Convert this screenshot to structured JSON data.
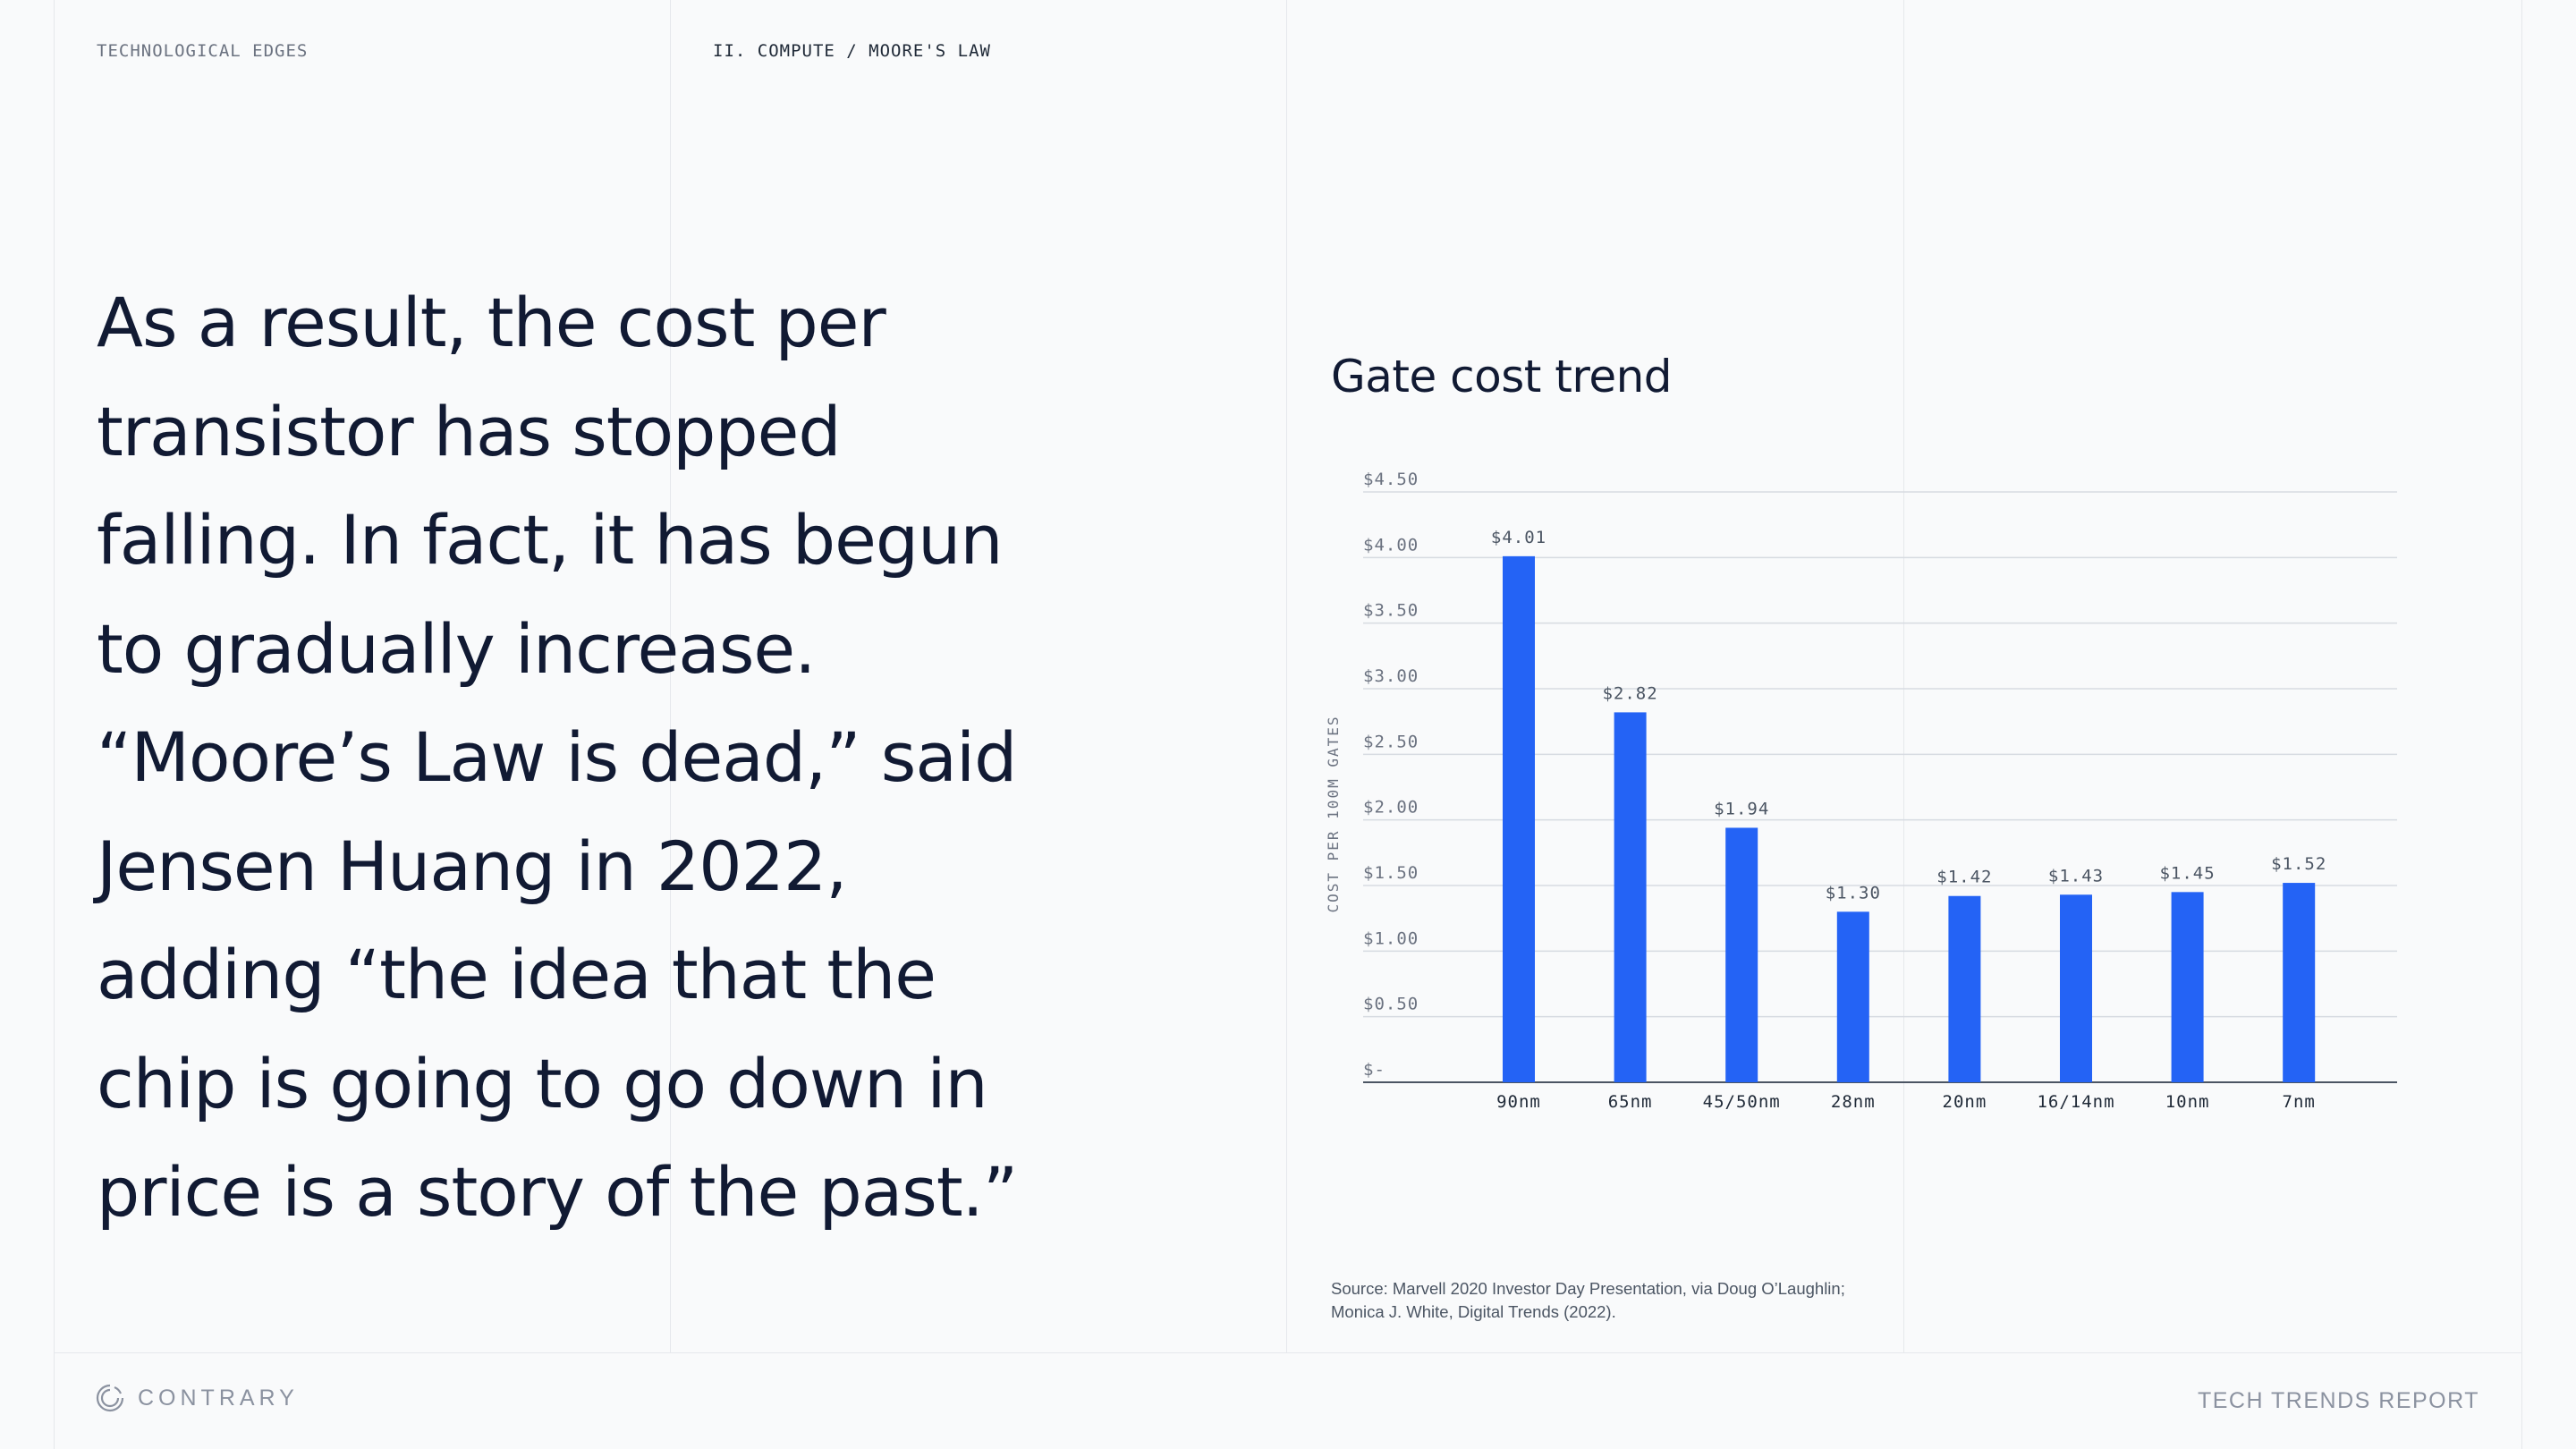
{
  "header": {
    "section": "TECHNOLOGICAL EDGES",
    "breadcrumb": "II. COMPUTE / MOORE'S LAW"
  },
  "quote_lines": [
    "As a result, the cost per",
    "transistor has stopped",
    "falling. In fact, it has begun",
    "to gradually increase.",
    "“Moore’s Law is dead,” said",
    "Jensen Huang in 2022,",
    "adding “the idea that the",
    "chip is going to go down in",
    "price is a story of the past.”"
  ],
  "chart_data": {
    "type": "bar",
    "title": "Gate cost trend",
    "ylabel": "COST PER 100M GATES",
    "xlabel": "",
    "categories": [
      "90nm",
      "65nm",
      "45/50nm",
      "28nm",
      "20nm",
      "16/14nm",
      "10nm",
      "7nm"
    ],
    "values": [
      4.01,
      2.82,
      1.94,
      1.3,
      1.42,
      1.43,
      1.45,
      1.52
    ],
    "value_labels": [
      "$4.01",
      "$2.82",
      "$1.94",
      "$1.30",
      "$1.42",
      "$1.43",
      "$1.45",
      "$1.52"
    ],
    "ylim": [
      0,
      4.5
    ],
    "yticks": [
      0,
      0.5,
      1,
      1.5,
      2,
      2.5,
      3,
      3.5,
      4,
      4.5
    ],
    "ytick_labels": [
      "$-",
      "$0.50",
      "$1.00",
      "$1.50",
      "$2.00",
      "$2.50",
      "$3.00",
      "$3.50",
      "$4.00",
      "$4.50"
    ],
    "grid": true,
    "bar_color": "#2463f5"
  },
  "source_lines": [
    "Source: Marvell 2020 Investor Day Presentation, via Doug O’Laughlin;",
    "Monica J. White, Digital Trends (2022)."
  ],
  "footer": {
    "brand": "CONTRARY",
    "report": "TECH TRENDS REPORT",
    "logo_icon": "contrary-logo-icon"
  }
}
